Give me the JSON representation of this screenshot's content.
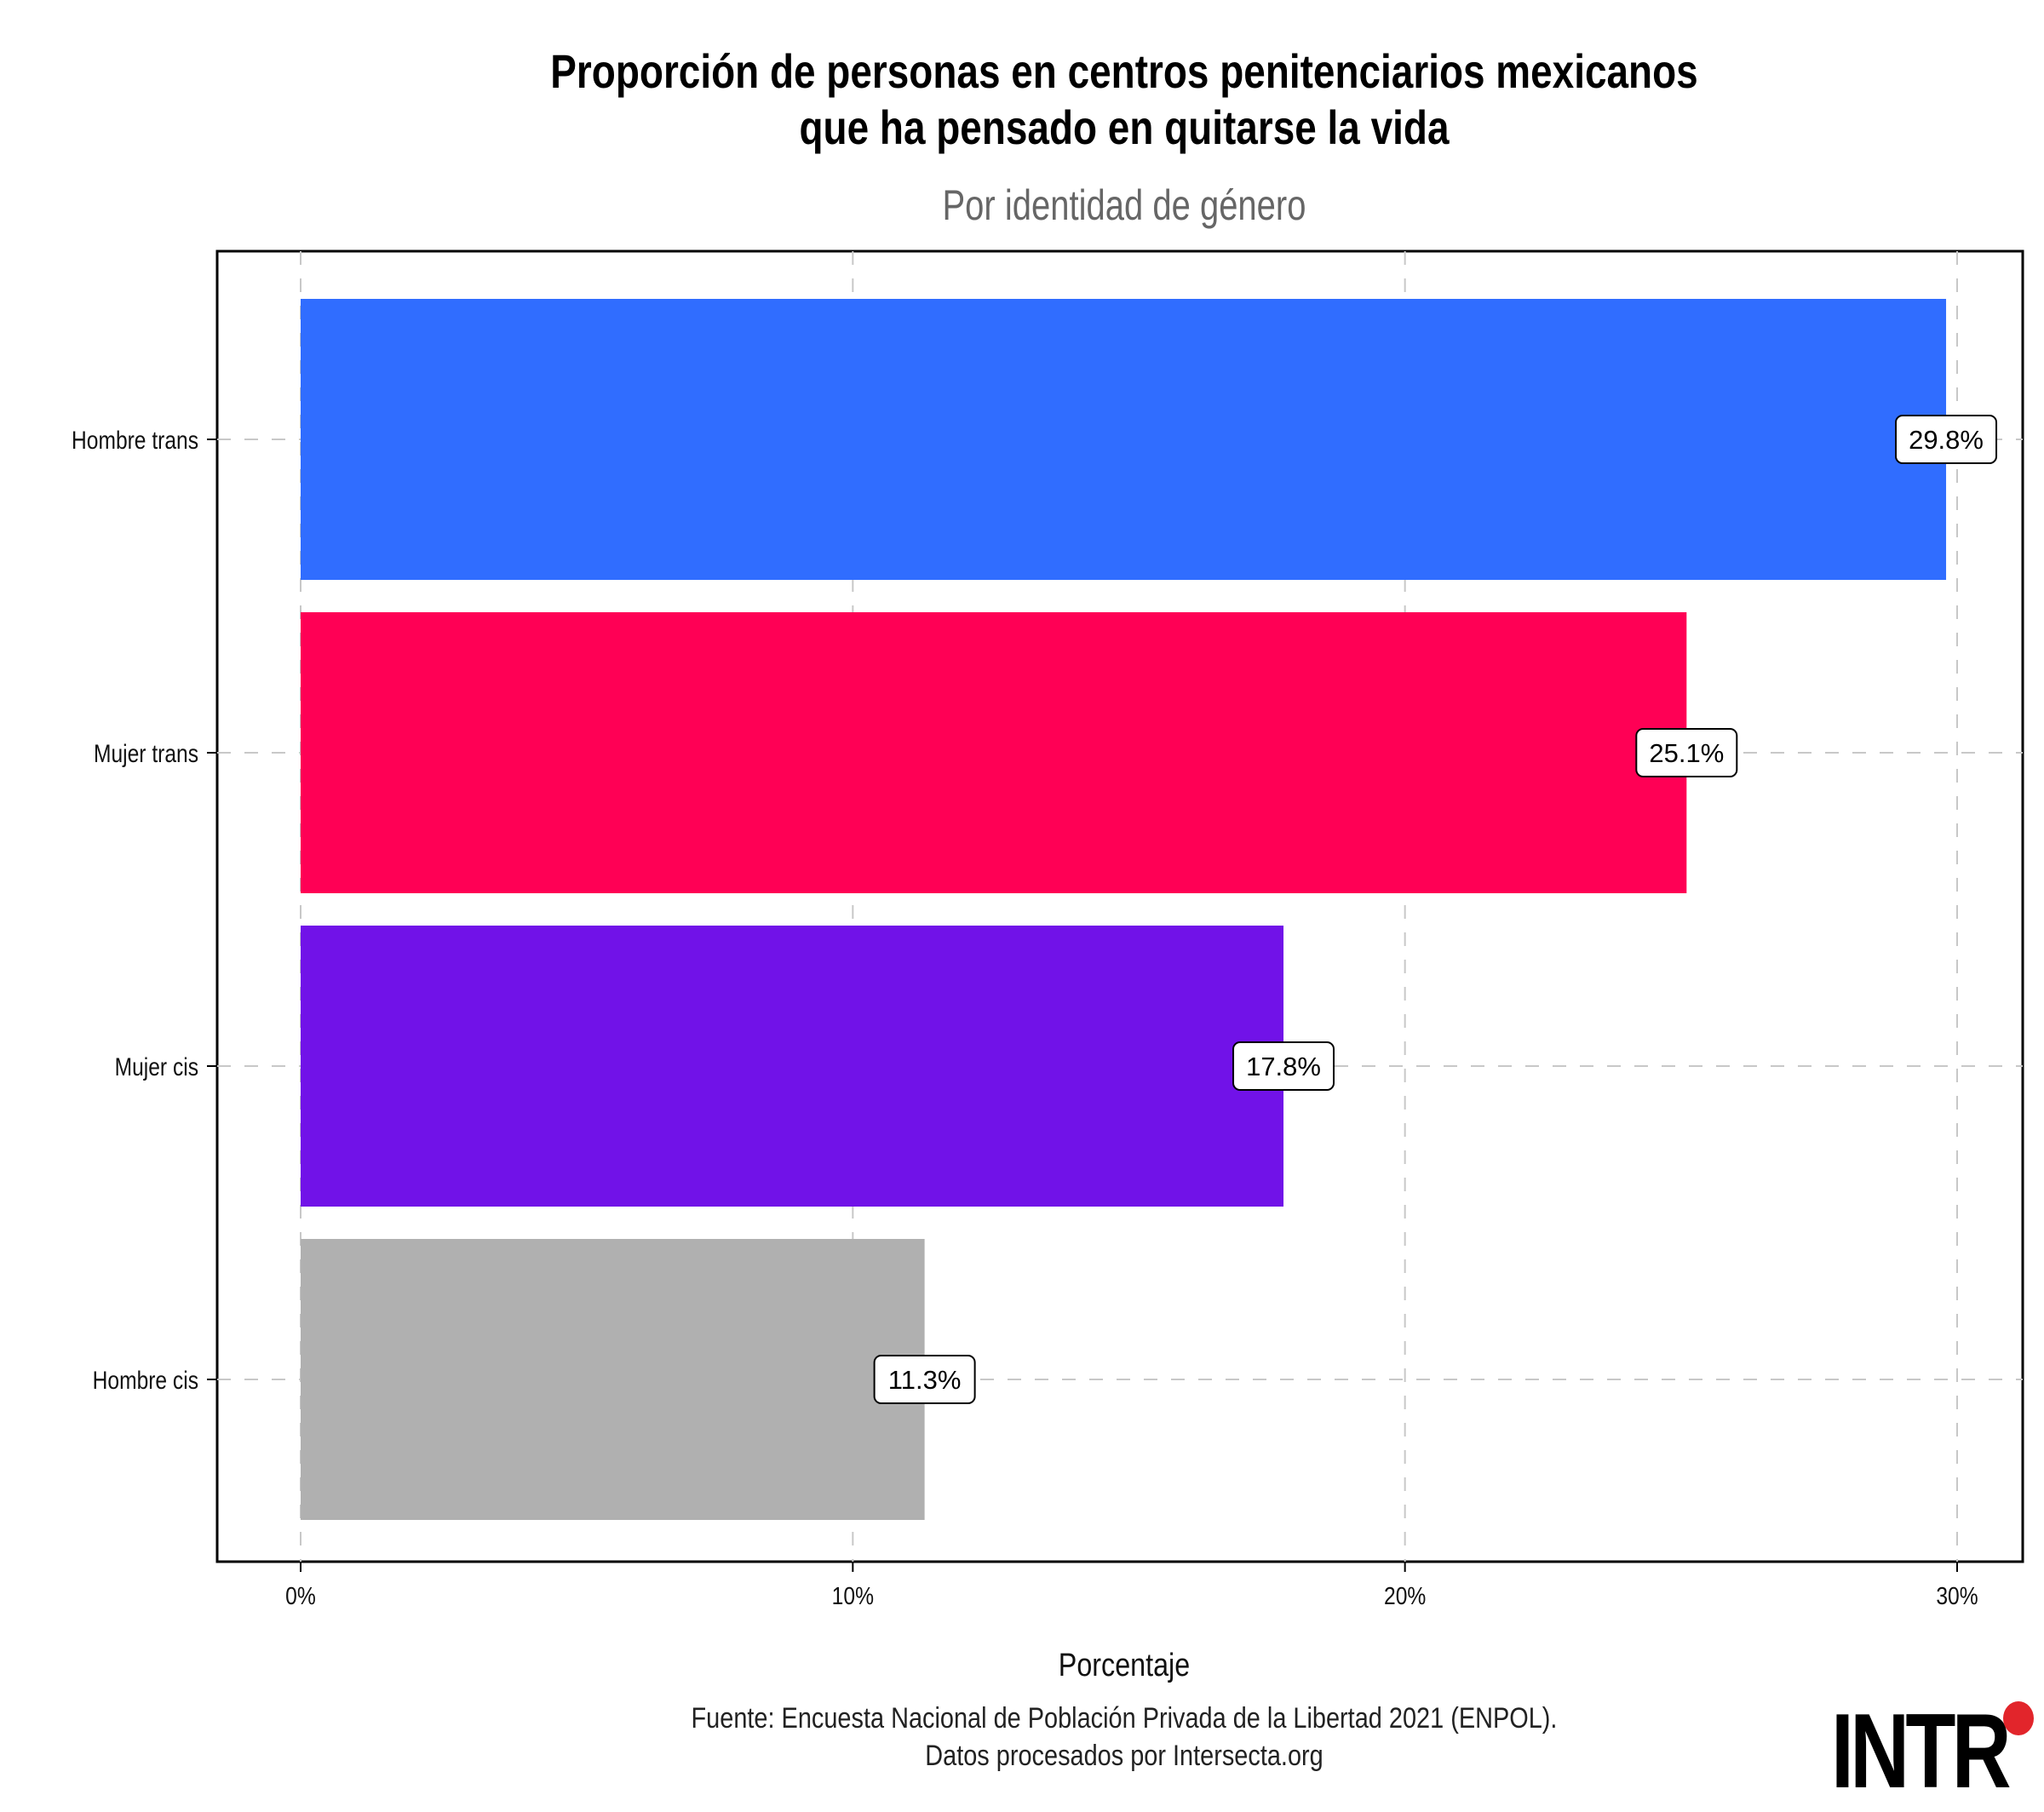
{
  "header": {
    "title_line1": "Proporción de personas en centros penitenciarios mexicanos",
    "title_line2": "que ha pensado en quitarse la vida",
    "subtitle": "Por identidad de género"
  },
  "chart_data": {
    "type": "bar",
    "orientation": "horizontal",
    "categories": [
      "Hombre trans",
      "Mujer trans",
      "Mujer cis",
      "Hombre cis"
    ],
    "values": [
      29.8,
      25.1,
      17.8,
      11.3
    ],
    "data_labels": [
      "29.8%",
      "25.1%",
      "17.8%",
      "11.3%"
    ],
    "colors": [
      "#306dff",
      "#ff0055",
      "#7112e8",
      "#b0b0b0"
    ],
    "xlabel": "Porcentaje",
    "ylabel": "",
    "xlim": [
      0,
      31
    ],
    "xticks": [
      0,
      10,
      20,
      30
    ],
    "xtick_labels": [
      "0%",
      "10%",
      "20%",
      "30%"
    ],
    "grid": true,
    "grid_style": "dashed",
    "legend": false
  },
  "footer": {
    "source_line1": "Fuente: Encuesta Nacional de Población Privada de la Libertad 2021 (ENPOL).",
    "source_line2": "Datos procesados por Intersecta.org"
  },
  "logo": {
    "text": "INTR",
    "accent_color": "#e2252b"
  }
}
